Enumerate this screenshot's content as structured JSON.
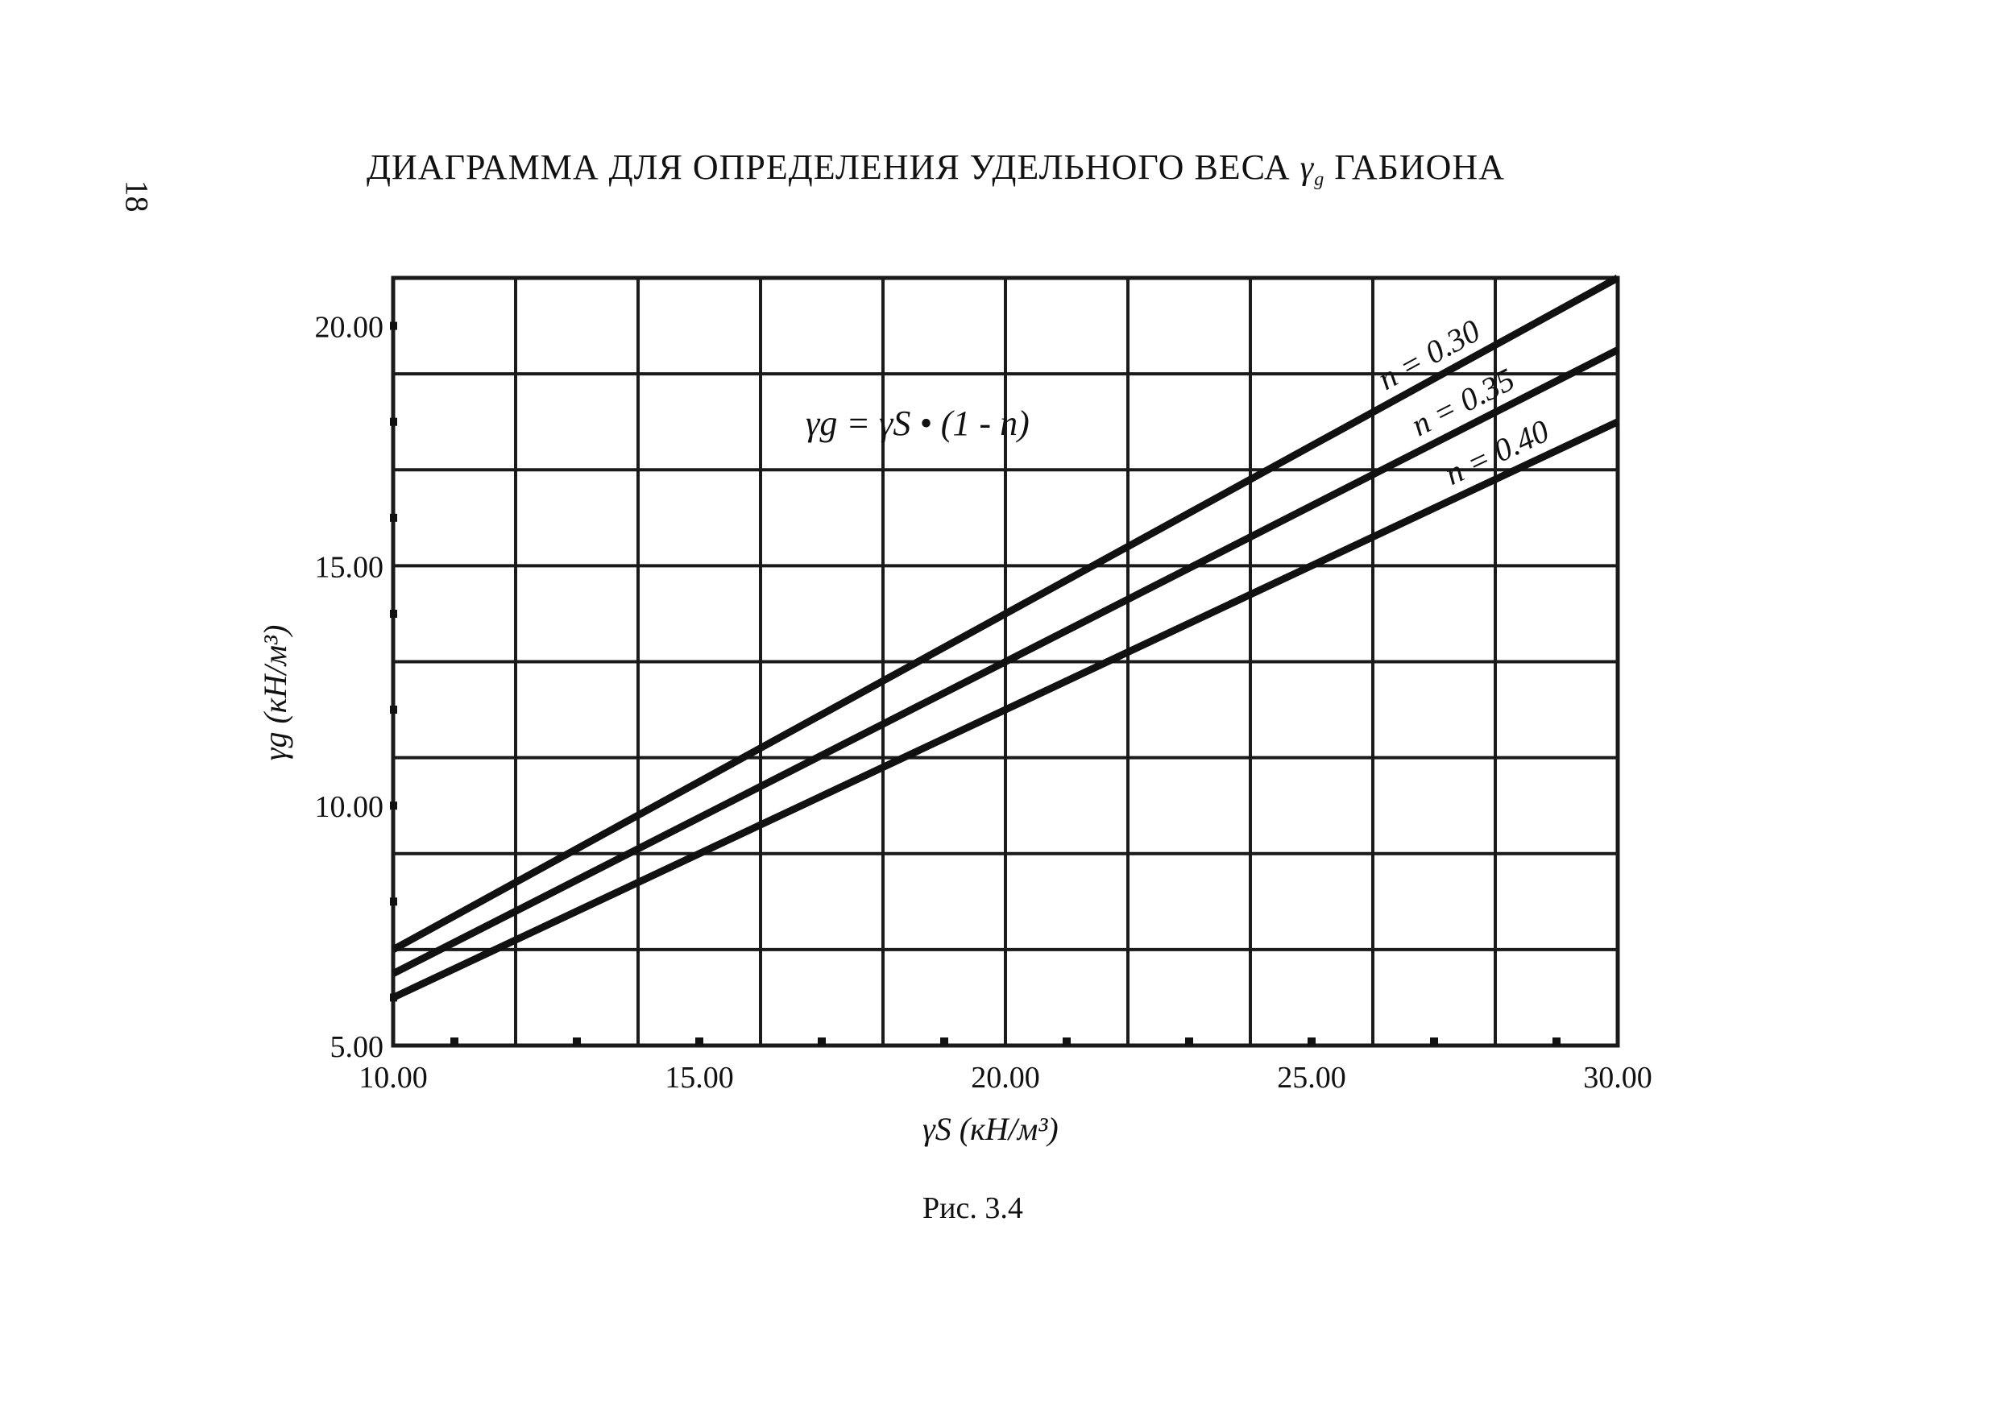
{
  "page": {
    "number": "18",
    "title_prefix": "ДИАГРАММА ДЛЯ ОПРЕДЕЛЕНИЯ УДЕЛЬНОГО ВЕСА",
    "title_symbol": "γ",
    "title_symbol_sub": "g",
    "title_suffix": "ГАБИОНА",
    "caption": "Рис. 3.4"
  },
  "chart_data": {
    "type": "line",
    "formula": "γg = γS • (1 - n)",
    "xlabel": "γS (кН/м³)",
    "ylabel": "γg (кН/м³)",
    "xlim": [
      10.0,
      30.0
    ],
    "ylim": [
      5.0,
      21.0
    ],
    "x_ticks": [
      "10.00",
      "15.00",
      "20.00",
      "25.00",
      "30.00"
    ],
    "y_ticks": [
      "5.00",
      "10.00",
      "15.00",
      "20.00"
    ],
    "grid": true,
    "x": [
      10.0,
      30.0
    ],
    "series": [
      {
        "name": "n = 0.30",
        "values": [
          7.0,
          21.0
        ]
      },
      {
        "name": "n = 0.35",
        "values": [
          6.5,
          19.5
        ]
      },
      {
        "name": "n = 0.40",
        "values": [
          6.0,
          18.0
        ]
      }
    ],
    "colors": {
      "line": "#111111",
      "grid": "#1a1a1a",
      "background": "#ffffff"
    }
  }
}
